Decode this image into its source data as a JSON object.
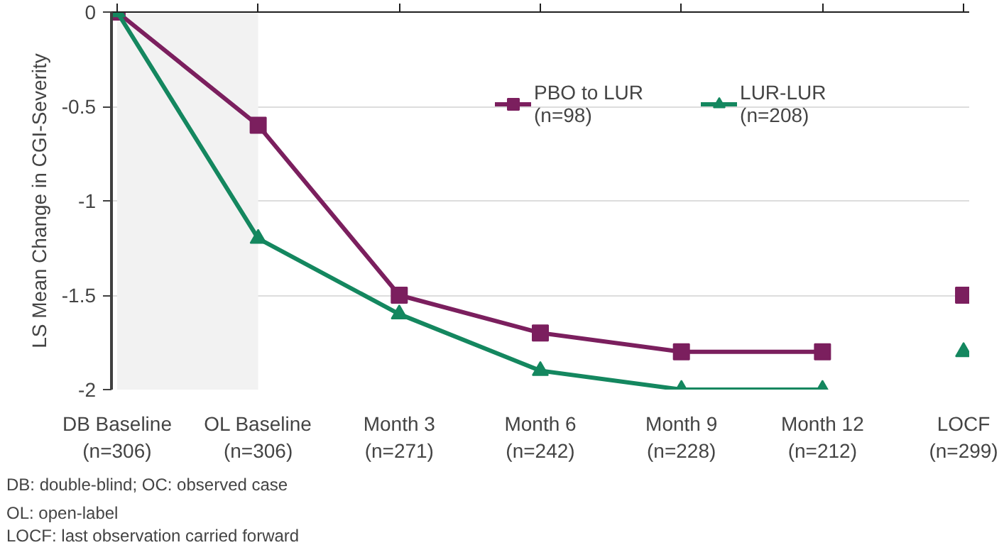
{
  "chart_data": {
    "type": "line",
    "ylabel": "LS Mean Change in CGI-Severity",
    "categories": [
      "DB Baseline\n(n=306)",
      "OL Baseline\n(n=306)",
      "Month 3\n(n=271)",
      "Month 6\n(n=242)",
      "Month 9\n(n=228)",
      "Month 12\n(n=212)",
      "LOCF\n(n=299)"
    ],
    "series": [
      {
        "name": "PBO to LUR\n(n=98)",
        "color": "#7b1f5e",
        "marker": "square",
        "values": [
          0,
          -0.6,
          -1.5,
          -1.7,
          -1.8,
          -1.8,
          null
        ]
      },
      {
        "name": "LUR-LUR\n(n=208)",
        "color": "#14875f",
        "marker": "triangle",
        "values": [
          0,
          -1.2,
          -1.6,
          -1.9,
          -2,
          -2,
          null
        ]
      },
      {
        "type": "scatter",
        "color": "#7b1f5e",
        "marker": "square",
        "values": [
          null,
          null,
          null,
          null,
          null,
          null,
          -1.5
        ]
      },
      {
        "type": "scatter",
        "color": "#14875f",
        "marker": "triangle",
        "values": [
          null,
          null,
          null,
          null,
          null,
          null,
          -1.8
        ]
      }
    ],
    "ylim": [
      -2,
      0
    ],
    "yticks": [
      0,
      -0.5,
      -1,
      -1.5,
      -2
    ],
    "grid": "y",
    "legend": "top right",
    "bands": [
      {
        "axis": "x",
        "from": "DB Baseline\n(n=306)",
        "to": "OL Baseline\n(n=306)",
        "color": "#f2f2f2"
      }
    ],
    "annotations": [
      "DB: double-blind; OC: observed case",
      "OL: open-label",
      "LOCF: last observation carried forward"
    ]
  }
}
